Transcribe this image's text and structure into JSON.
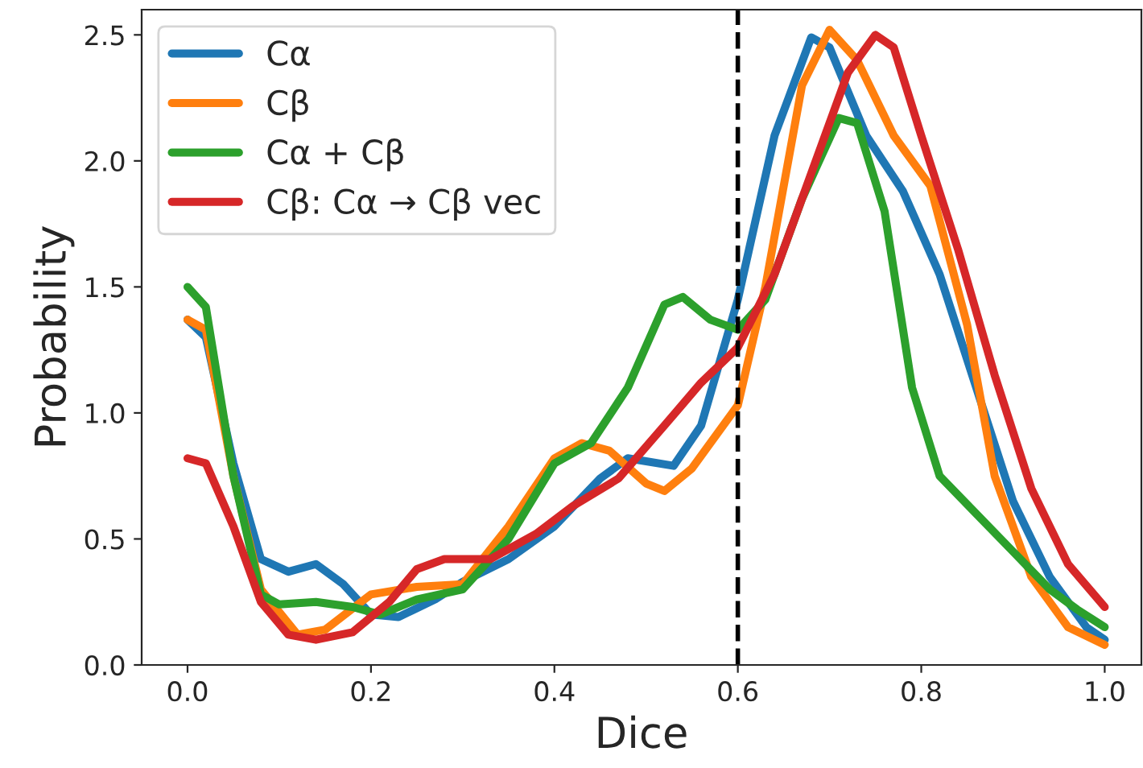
{
  "chart_data": {
    "type": "line",
    "xlabel": "Dice",
    "ylabel": "Probability",
    "xlim": [
      -0.05,
      1.04
    ],
    "ylim": [
      0,
      2.6
    ],
    "xticks": [
      {
        "value": 0,
        "label": "0.0"
      },
      0.2,
      0.4,
      0.6,
      0.8,
      {
        "value": 1,
        "label": "1.0"
      }
    ],
    "yticks": [
      {
        "value": 0,
        "label": "0.0"
      },
      0.5,
      {
        "value": 1,
        "label": "1.0"
      },
      1.5,
      {
        "value": 2,
        "label": "2.0"
      },
      2.5
    ],
    "legend": "top left",
    "grid": false,
    "line_style": "solid",
    "marker": "none",
    "ref_lines": [
      {
        "axis": "x",
        "value": 0.6,
        "color": "#000000",
        "line_style": "dashed"
      }
    ],
    "series": [
      {
        "name": "Cα",
        "color": "#1f77b4",
        "x": [
          0,
          0.02,
          0.05,
          0.08,
          0.11,
          0.14,
          0.17,
          0.2,
          0.23,
          0.27,
          0.3,
          0.35,
          0.4,
          0.45,
          0.48,
          0.53,
          0.56,
          0.6,
          0.64,
          0.68,
          0.7,
          0.74,
          0.78,
          0.82,
          0.86,
          0.9,
          0.94,
          0.98,
          1.0
        ],
        "values": [
          1.37,
          1.3,
          0.8,
          0.42,
          0.37,
          0.4,
          0.32,
          0.2,
          0.19,
          0.26,
          0.33,
          0.42,
          0.55,
          0.74,
          0.82,
          0.79,
          0.95,
          1.45,
          2.1,
          2.49,
          2.45,
          2.1,
          1.88,
          1.55,
          1.1,
          0.65,
          0.35,
          0.15,
          0.1
        ]
      },
      {
        "name": "Cβ",
        "color": "#ff7f0e",
        "x": [
          0,
          0.02,
          0.05,
          0.08,
          0.12,
          0.15,
          0.2,
          0.25,
          0.3,
          0.35,
          0.4,
          0.43,
          0.46,
          0.5,
          0.52,
          0.55,
          0.6,
          0.63,
          0.67,
          0.7,
          0.73,
          0.77,
          0.81,
          0.85,
          0.88,
          0.92,
          0.96,
          1.0
        ],
        "values": [
          1.37,
          1.33,
          0.75,
          0.3,
          0.12,
          0.14,
          0.28,
          0.31,
          0.32,
          0.55,
          0.82,
          0.88,
          0.85,
          0.72,
          0.69,
          0.78,
          1.03,
          1.5,
          2.3,
          2.52,
          2.4,
          2.1,
          1.9,
          1.35,
          0.75,
          0.35,
          0.15,
          0.08
        ]
      },
      {
        "name": "Cα + Cβ",
        "color": "#2ca02c",
        "x": [
          0,
          0.02,
          0.05,
          0.08,
          0.1,
          0.14,
          0.18,
          0.21,
          0.25,
          0.3,
          0.35,
          0.4,
          0.44,
          0.48,
          0.52,
          0.54,
          0.57,
          0.6,
          0.63,
          0.67,
          0.71,
          0.73,
          0.76,
          0.79,
          0.82,
          0.86,
          0.9,
          0.94,
          0.97,
          1.0
        ],
        "values": [
          1.5,
          1.42,
          0.75,
          0.28,
          0.24,
          0.25,
          0.23,
          0.2,
          0.26,
          0.3,
          0.5,
          0.8,
          0.88,
          1.1,
          1.43,
          1.46,
          1.37,
          1.33,
          1.45,
          1.85,
          2.17,
          2.15,
          1.8,
          1.1,
          0.75,
          0.6,
          0.45,
          0.3,
          0.22,
          0.15
        ]
      },
      {
        "name": "Cβ: Cα → Cβ vec",
        "color": "#d62728",
        "x": [
          0,
          0.02,
          0.05,
          0.08,
          0.11,
          0.14,
          0.18,
          0.22,
          0.25,
          0.28,
          0.33,
          0.38,
          0.42,
          0.47,
          0.52,
          0.56,
          0.6,
          0.64,
          0.68,
          0.72,
          0.75,
          0.77,
          0.8,
          0.84,
          0.88,
          0.92,
          0.96,
          1.0
        ],
        "values": [
          0.82,
          0.8,
          0.55,
          0.25,
          0.12,
          0.1,
          0.13,
          0.25,
          0.38,
          0.42,
          0.42,
          0.52,
          0.63,
          0.74,
          0.95,
          1.12,
          1.26,
          1.55,
          1.95,
          2.35,
          2.5,
          2.45,
          2.1,
          1.65,
          1.15,
          0.7,
          0.4,
          0.23
        ]
      }
    ]
  }
}
